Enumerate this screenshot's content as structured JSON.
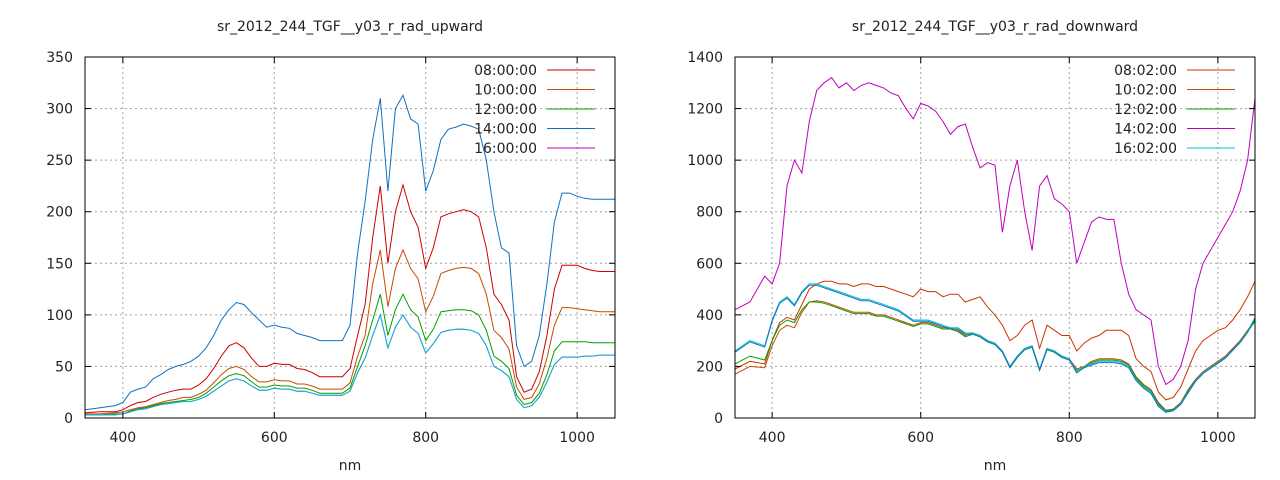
{
  "chart_data": [
    {
      "type": "line",
      "title": "sr_2012_244_TGF__y03_r_rad_upward",
      "xlabel": "nm",
      "ylabel": "",
      "xlim": [
        350,
        1050
      ],
      "ylim": [
        0,
        350
      ],
      "xticks": [
        400,
        600,
        800,
        1000
      ],
      "yticks": [
        0,
        50,
        100,
        150,
        200,
        250,
        300,
        350
      ],
      "grid": true,
      "legend": "top-right",
      "x": [
        350,
        370,
        390,
        400,
        410,
        420,
        430,
        440,
        450,
        460,
        470,
        480,
        490,
        500,
        510,
        520,
        530,
        540,
        550,
        560,
        570,
        580,
        590,
        600,
        610,
        620,
        630,
        640,
        650,
        660,
        670,
        680,
        690,
        700,
        710,
        720,
        730,
        740,
        750,
        760,
        770,
        780,
        790,
        800,
        810,
        820,
        830,
        840,
        850,
        860,
        870,
        880,
        890,
        900,
        910,
        920,
        930,
        940,
        950,
        960,
        970,
        980,
        990,
        1000,
        1010,
        1020,
        1030,
        1040,
        1050
      ],
      "series": [
        {
          "name": "08:00:00",
          "color": "#cc0000",
          "values": [
            5,
            6,
            6,
            8,
            12,
            15,
            16,
            20,
            23,
            25,
            27,
            28,
            28,
            32,
            38,
            48,
            60,
            70,
            73,
            68,
            58,
            50,
            50,
            53,
            52,
            52,
            48,
            47,
            44,
            40,
            40,
            40,
            40,
            48,
            80,
            110,
            175,
            225,
            150,
            200,
            226,
            200,
            185,
            145,
            165,
            195,
            198,
            200,
            202,
            200,
            195,
            165,
            120,
            110,
            95,
            40,
            25,
            28,
            45,
            80,
            125,
            148,
            148,
            148,
            145,
            143,
            142,
            142,
            142
          ]
        },
        {
          "name": "10:00:00",
          "color": "#c84a00",
          "values": [
            4,
            4,
            5,
            6,
            8,
            10,
            11,
            13,
            15,
            17,
            18,
            20,
            20,
            23,
            27,
            34,
            42,
            48,
            50,
            47,
            40,
            35,
            35,
            37,
            36,
            36,
            33,
            33,
            31,
            28,
            28,
            28,
            28,
            34,
            60,
            80,
            130,
            163,
            108,
            145,
            163,
            145,
            135,
            103,
            118,
            140,
            143,
            145,
            146,
            145,
            140,
            120,
            85,
            78,
            67,
            30,
            18,
            20,
            33,
            58,
            90,
            107,
            107,
            106,
            105,
            104,
            103,
            103,
            103
          ]
        },
        {
          "name": "12:00:00",
          "color": "#00a000",
          "values": [
            3,
            3,
            4,
            4,
            7,
            9,
            10,
            12,
            14,
            15,
            16,
            17,
            18,
            20,
            24,
            30,
            36,
            41,
            43,
            41,
            35,
            30,
            30,
            32,
            31,
            31,
            29,
            29,
            27,
            24,
            24,
            24,
            24,
            29,
            50,
            70,
            95,
            120,
            80,
            105,
            120,
            105,
            98,
            75,
            86,
            103,
            104,
            105,
            105,
            104,
            100,
            85,
            60,
            55,
            48,
            22,
            13,
            15,
            24,
            42,
            65,
            74,
            74,
            74,
            74,
            73,
            73,
            73,
            73
          ]
        },
        {
          "name": "14:00:00",
          "color": "#1070c0",
          "values": [
            8,
            10,
            12,
            15,
            25,
            28,
            30,
            38,
            42,
            47,
            50,
            52,
            55,
            60,
            68,
            80,
            95,
            105,
            112,
            110,
            102,
            95,
            88,
            90,
            88,
            87,
            82,
            80,
            78,
            75,
            75,
            75,
            75,
            90,
            160,
            210,
            270,
            310,
            220,
            300,
            313,
            290,
            285,
            220,
            240,
            270,
            280,
            282,
            285,
            283,
            280,
            250,
            200,
            165,
            160,
            70,
            50,
            55,
            80,
            130,
            190,
            218,
            218,
            215,
            213,
            212,
            212,
            212,
            212
          ]
        },
        {
          "name": "16:00:00",
          "color": "#c000c0",
          "values": [
            3,
            3,
            3,
            4,
            6,
            8,
            9,
            11,
            13,
            14,
            15,
            16,
            16,
            18,
            21,
            26,
            31,
            36,
            38,
            36,
            31,
            27,
            27,
            29,
            28,
            28,
            26,
            26,
            24,
            22,
            22,
            22,
            22,
            26,
            44,
            58,
            80,
            100,
            68,
            88,
            100,
            88,
            82,
            63,
            72,
            83,
            85,
            86,
            86,
            85,
            82,
            70,
            50,
            46,
            40,
            18,
            10,
            12,
            20,
            35,
            52,
            59,
            59,
            59,
            60,
            60,
            61,
            61,
            61
          ]
        },
        {
          "name": "",
          "color": "#00c0d0",
          "values": [
            3,
            3,
            3,
            4,
            6,
            8,
            9,
            11,
            13,
            14,
            15,
            16,
            16,
            18,
            21,
            26,
            31,
            36,
            38,
            36,
            31,
            27,
            27,
            29,
            28,
            28,
            26,
            26,
            24,
            22,
            22,
            22,
            22,
            26,
            44,
            58,
            80,
            100,
            68,
            88,
            100,
            88,
            82,
            63,
            72,
            83,
            85,
            86,
            86,
            85,
            82,
            70,
            50,
            46,
            40,
            18,
            10,
            12,
            20,
            35,
            52,
            59,
            59,
            59,
            60,
            60,
            61,
            61,
            61
          ]
        }
      ]
    },
    {
      "type": "line",
      "title": "sr_2012_244_TGF__y03_r_rad_downward",
      "xlabel": "nm",
      "ylabel": "",
      "xlim": [
        350,
        1050
      ],
      "ylim": [
        0,
        1400
      ],
      "xticks": [
        400,
        600,
        800,
        1000
      ],
      "yticks": [
        0,
        200,
        400,
        600,
        800,
        1000,
        1200,
        1400
      ],
      "grid": true,
      "legend": "top-right",
      "x": [
        350,
        370,
        390,
        400,
        410,
        420,
        430,
        440,
        450,
        460,
        470,
        480,
        490,
        500,
        510,
        520,
        530,
        540,
        550,
        560,
        570,
        580,
        590,
        600,
        610,
        620,
        630,
        640,
        650,
        660,
        670,
        680,
        690,
        700,
        710,
        720,
        730,
        740,
        750,
        760,
        770,
        780,
        790,
        800,
        810,
        820,
        830,
        840,
        850,
        860,
        870,
        880,
        890,
        900,
        910,
        920,
        930,
        940,
        950,
        960,
        970,
        980,
        990,
        1000,
        1010,
        1020,
        1030,
        1040,
        1050
      ],
      "series": [
        {
          "name": "08:02:00",
          "color": "#cc3300",
          "values": [
            190,
            220,
            210,
            300,
            370,
            390,
            380,
            440,
            500,
            520,
            530,
            530,
            520,
            520,
            510,
            520,
            520,
            510,
            510,
            500,
            490,
            480,
            470,
            500,
            490,
            490,
            470,
            480,
            480,
            450,
            460,
            470,
            430,
            400,
            360,
            300,
            320,
            360,
            380,
            270,
            360,
            340,
            320,
            320,
            260,
            290,
            310,
            320,
            340,
            340,
            340,
            320,
            230,
            200,
            180,
            100,
            70,
            80,
            120,
            190,
            260,
            300,
            320,
            340,
            350,
            380,
            420,
            470,
            530
          ]
        },
        {
          "name": "10:02:00",
          "color": "#c84a00",
          "values": [
            170,
            200,
            195,
            280,
            340,
            360,
            350,
            410,
            450,
            455,
            450,
            440,
            430,
            420,
            410,
            410,
            410,
            400,
            400,
            390,
            380,
            370,
            360,
            370,
            370,
            360,
            350,
            350,
            340,
            320,
            330,
            320,
            300,
            290,
            260,
            200,
            240,
            270,
            280,
            190,
            270,
            260,
            240,
            230,
            190,
            200,
            220,
            230,
            230,
            230,
            225,
            210,
            160,
            130,
            110,
            60,
            30,
            35,
            60,
            110,
            150,
            180,
            200,
            220,
            240,
            270,
            300,
            340,
            380
          ]
        },
        {
          "name": "12:02:00",
          "color": "#00a000",
          "values": [
            210,
            240,
            225,
            300,
            360,
            380,
            370,
            420,
            450,
            450,
            445,
            435,
            425,
            415,
            405,
            405,
            405,
            395,
            395,
            385,
            375,
            365,
            355,
            365,
            365,
            355,
            345,
            345,
            335,
            315,
            325,
            315,
            295,
            285,
            255,
            195,
            235,
            265,
            275,
            185,
            265,
            255,
            235,
            225,
            185,
            195,
            215,
            225,
            225,
            225,
            220,
            205,
            155,
            125,
            105,
            55,
            28,
            32,
            55,
            105,
            145,
            175,
            195,
            215,
            235,
            265,
            295,
            335,
            375
          ]
        },
        {
          "name": "14:02:00",
          "color": "#c000c0",
          "values": [
            420,
            450,
            550,
            520,
            600,
            900,
            1000,
            950,
            1150,
            1270,
            1300,
            1320,
            1280,
            1300,
            1270,
            1290,
            1300,
            1290,
            1280,
            1260,
            1250,
            1200,
            1160,
            1220,
            1210,
            1190,
            1150,
            1100,
            1130,
            1140,
            1050,
            970,
            990,
            980,
            720,
            900,
            1000,
            800,
            650,
            900,
            940,
            850,
            830,
            800,
            600,
            680,
            760,
            780,
            770,
            770,
            600,
            480,
            420,
            400,
            380,
            200,
            130,
            150,
            200,
            300,
            500,
            600,
            650,
            700,
            750,
            800,
            880,
            1000,
            1240
          ]
        },
        {
          "name": "16:02:00",
          "color": "#00c0d0",
          "values": [
            260,
            300,
            280,
            380,
            450,
            470,
            440,
            490,
            520,
            520,
            510,
            500,
            490,
            480,
            470,
            460,
            460,
            450,
            440,
            430,
            420,
            400,
            380,
            380,
            380,
            370,
            360,
            350,
            350,
            330,
            330,
            320,
            300,
            290,
            260,
            200,
            240,
            270,
            280,
            190,
            270,
            260,
            240,
            230,
            180,
            200,
            210,
            220,
            220,
            220,
            215,
            200,
            150,
            120,
            100,
            50,
            25,
            30,
            55,
            100,
            145,
            175,
            195,
            215,
            235,
            265,
            295,
            335,
            390
          ]
        },
        {
          "name": "",
          "color": "#1070c0",
          "values": [
            255,
            295,
            275,
            375,
            445,
            465,
            435,
            485,
            515,
            515,
            505,
            495,
            485,
            475,
            465,
            455,
            455,
            445,
            435,
            425,
            415,
            395,
            375,
            375,
            375,
            365,
            355,
            345,
            345,
            325,
            325,
            315,
            295,
            285,
            255,
            195,
            235,
            265,
            275,
            185,
            265,
            255,
            235,
            225,
            175,
            195,
            205,
            215,
            215,
            215,
            210,
            195,
            145,
            115,
            95,
            45,
            22,
            28,
            52,
            97,
            142,
            172,
            192,
            212,
            232,
            262,
            292,
            332,
            385
          ]
        }
      ]
    }
  ]
}
